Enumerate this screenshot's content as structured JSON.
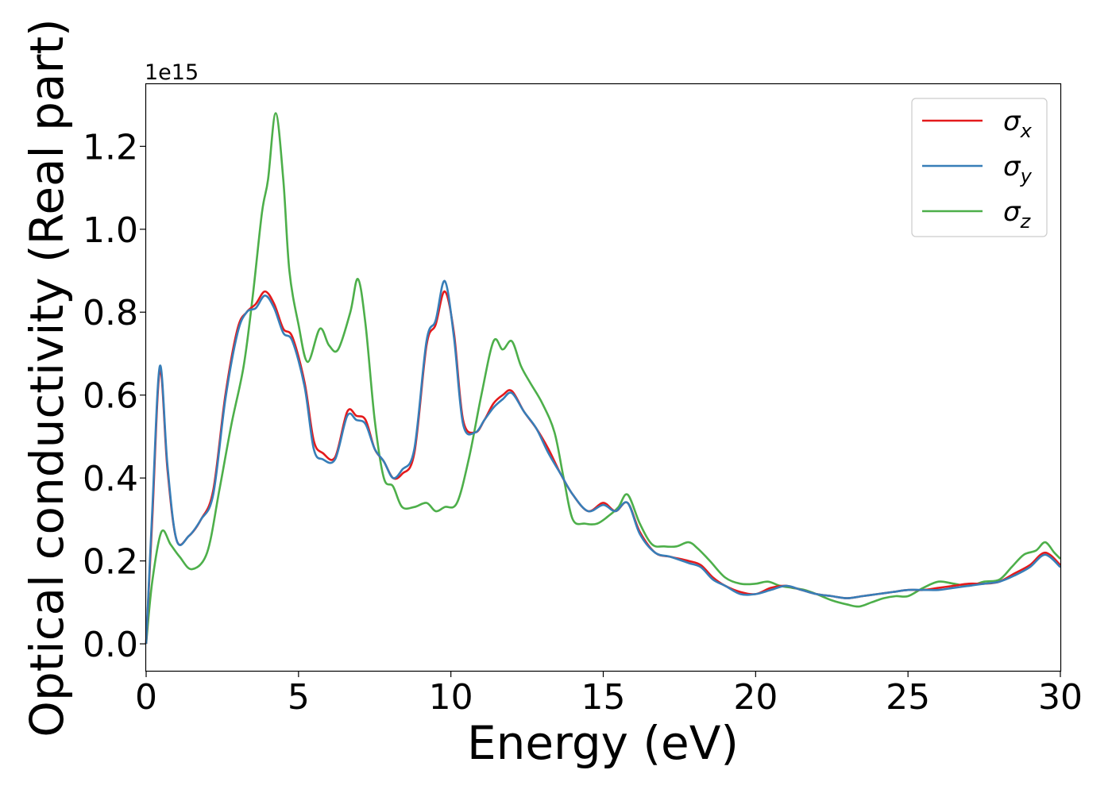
{
  "chart_data": {
    "type": "line",
    "title": "",
    "xlabel": "Energy (eV)",
    "ylabel": "Optical conductivity (Real part)",
    "offset_text": "1e15",
    "xlim": [
      0,
      30
    ],
    "ylim": [
      -0.065,
      1.35
    ],
    "x_ticks": [
      0,
      5,
      10,
      15,
      20,
      25,
      30
    ],
    "y_ticks": [
      0.0,
      0.2,
      0.4,
      0.6,
      0.8,
      1.0,
      1.2
    ],
    "y_tick_labels": [
      "0.0",
      "0.2",
      "0.4",
      "0.6",
      "0.8",
      "1.0",
      "1.2"
    ],
    "grid": false,
    "legend_position": "top-right",
    "series": [
      {
        "name": "σ_x",
        "label_main": "σ",
        "label_sub": "x",
        "color": "#e41a1c",
        "points": [
          [
            0,
            0
          ],
          [
            0.2,
            0.3
          ],
          [
            0.45,
            0.66
          ],
          [
            0.7,
            0.42
          ],
          [
            1.0,
            0.25
          ],
          [
            1.4,
            0.26
          ],
          [
            1.8,
            0.3
          ],
          [
            2.2,
            0.37
          ],
          [
            2.6,
            0.6
          ],
          [
            3.0,
            0.76
          ],
          [
            3.3,
            0.8
          ],
          [
            3.6,
            0.82
          ],
          [
            3.9,
            0.85
          ],
          [
            4.2,
            0.82
          ],
          [
            4.5,
            0.76
          ],
          [
            4.8,
            0.74
          ],
          [
            5.2,
            0.63
          ],
          [
            5.5,
            0.49
          ],
          [
            5.8,
            0.46
          ],
          [
            6.2,
            0.45
          ],
          [
            6.6,
            0.56
          ],
          [
            6.9,
            0.55
          ],
          [
            7.2,
            0.54
          ],
          [
            7.5,
            0.47
          ],
          [
            7.8,
            0.44
          ],
          [
            8.1,
            0.4
          ],
          [
            8.4,
            0.41
          ],
          [
            8.8,
            0.46
          ],
          [
            9.2,
            0.72
          ],
          [
            9.5,
            0.77
          ],
          [
            9.8,
            0.85
          ],
          [
            10.1,
            0.75
          ],
          [
            10.4,
            0.54
          ],
          [
            10.8,
            0.51
          ],
          [
            11.1,
            0.54
          ],
          [
            11.4,
            0.58
          ],
          [
            11.7,
            0.6
          ],
          [
            12.0,
            0.61
          ],
          [
            12.4,
            0.56
          ],
          [
            12.8,
            0.52
          ],
          [
            13.2,
            0.47
          ],
          [
            13.6,
            0.41
          ],
          [
            14.0,
            0.36
          ],
          [
            14.5,
            0.32
          ],
          [
            15.0,
            0.34
          ],
          [
            15.4,
            0.32
          ],
          [
            15.8,
            0.34
          ],
          [
            16.2,
            0.27
          ],
          [
            16.7,
            0.22
          ],
          [
            17.2,
            0.21
          ],
          [
            17.8,
            0.2
          ],
          [
            18.2,
            0.19
          ],
          [
            18.6,
            0.16
          ],
          [
            19.0,
            0.14
          ],
          [
            19.5,
            0.125
          ],
          [
            20.0,
            0.12
          ],
          [
            20.5,
            0.135
          ],
          [
            21.0,
            0.14
          ],
          [
            21.5,
            0.13
          ],
          [
            22.0,
            0.12
          ],
          [
            22.5,
            0.115
          ],
          [
            23.0,
            0.11
          ],
          [
            23.5,
            0.115
          ],
          [
            24.0,
            0.12
          ],
          [
            24.5,
            0.125
          ],
          [
            25.0,
            0.13
          ],
          [
            25.5,
            0.13
          ],
          [
            26.0,
            0.135
          ],
          [
            26.5,
            0.14
          ],
          [
            27.0,
            0.145
          ],
          [
            27.5,
            0.145
          ],
          [
            28.0,
            0.15
          ],
          [
            28.5,
            0.17
          ],
          [
            29.0,
            0.19
          ],
          [
            29.5,
            0.22
          ],
          [
            30.0,
            0.19
          ]
        ]
      },
      {
        "name": "σ_y",
        "label_main": "σ",
        "label_sub": "y",
        "color": "#377eb8",
        "points": [
          [
            0,
            0
          ],
          [
            0.2,
            0.32
          ],
          [
            0.45,
            0.67
          ],
          [
            0.7,
            0.43
          ],
          [
            1.0,
            0.25
          ],
          [
            1.4,
            0.26
          ],
          [
            1.8,
            0.3
          ],
          [
            2.2,
            0.36
          ],
          [
            2.6,
            0.59
          ],
          [
            3.0,
            0.75
          ],
          [
            3.3,
            0.8
          ],
          [
            3.6,
            0.81
          ],
          [
            3.9,
            0.84
          ],
          [
            4.2,
            0.81
          ],
          [
            4.5,
            0.75
          ],
          [
            4.8,
            0.73
          ],
          [
            5.2,
            0.62
          ],
          [
            5.5,
            0.47
          ],
          [
            5.8,
            0.445
          ],
          [
            6.2,
            0.445
          ],
          [
            6.6,
            0.55
          ],
          [
            6.9,
            0.54
          ],
          [
            7.2,
            0.53
          ],
          [
            7.5,
            0.47
          ],
          [
            7.8,
            0.44
          ],
          [
            8.1,
            0.4
          ],
          [
            8.4,
            0.42
          ],
          [
            8.8,
            0.47
          ],
          [
            9.2,
            0.73
          ],
          [
            9.5,
            0.78
          ],
          [
            9.8,
            0.875
          ],
          [
            10.1,
            0.74
          ],
          [
            10.4,
            0.53
          ],
          [
            10.8,
            0.51
          ],
          [
            11.1,
            0.54
          ],
          [
            11.4,
            0.57
          ],
          [
            11.7,
            0.59
          ],
          [
            12.0,
            0.605
          ],
          [
            12.4,
            0.56
          ],
          [
            12.8,
            0.52
          ],
          [
            13.2,
            0.46
          ],
          [
            13.6,
            0.41
          ],
          [
            14.0,
            0.36
          ],
          [
            14.5,
            0.32
          ],
          [
            15.0,
            0.335
          ],
          [
            15.4,
            0.32
          ],
          [
            15.8,
            0.34
          ],
          [
            16.2,
            0.265
          ],
          [
            16.7,
            0.22
          ],
          [
            17.2,
            0.21
          ],
          [
            17.8,
            0.195
          ],
          [
            18.2,
            0.185
          ],
          [
            18.6,
            0.155
          ],
          [
            19.0,
            0.14
          ],
          [
            19.5,
            0.12
          ],
          [
            20.0,
            0.12
          ],
          [
            20.5,
            0.13
          ],
          [
            21.0,
            0.14
          ],
          [
            21.5,
            0.13
          ],
          [
            22.0,
            0.12
          ],
          [
            22.5,
            0.115
          ],
          [
            23.0,
            0.11
          ],
          [
            23.5,
            0.115
          ],
          [
            24.0,
            0.12
          ],
          [
            24.5,
            0.125
          ],
          [
            25.0,
            0.13
          ],
          [
            25.5,
            0.13
          ],
          [
            26.0,
            0.13
          ],
          [
            26.5,
            0.135
          ],
          [
            27.0,
            0.14
          ],
          [
            27.5,
            0.145
          ],
          [
            28.0,
            0.15
          ],
          [
            28.5,
            0.165
          ],
          [
            29.0,
            0.185
          ],
          [
            29.5,
            0.215
          ],
          [
            30.0,
            0.185
          ]
        ]
      },
      {
        "name": "σ_z",
        "label_main": "σ",
        "label_sub": "z",
        "color": "#4daf4a",
        "points": [
          [
            0,
            0
          ],
          [
            0.2,
            0.15
          ],
          [
            0.5,
            0.27
          ],
          [
            0.8,
            0.24
          ],
          [
            1.1,
            0.21
          ],
          [
            1.5,
            0.18
          ],
          [
            2.0,
            0.22
          ],
          [
            2.4,
            0.37
          ],
          [
            2.8,
            0.53
          ],
          [
            3.2,
            0.67
          ],
          [
            3.5,
            0.84
          ],
          [
            3.8,
            1.04
          ],
          [
            4.0,
            1.12
          ],
          [
            4.25,
            1.28
          ],
          [
            4.5,
            1.12
          ],
          [
            4.7,
            0.9
          ],
          [
            5.0,
            0.77
          ],
          [
            5.3,
            0.68
          ],
          [
            5.7,
            0.76
          ],
          [
            6.0,
            0.72
          ],
          [
            6.3,
            0.71
          ],
          [
            6.7,
            0.8
          ],
          [
            6.95,
            0.88
          ],
          [
            7.2,
            0.77
          ],
          [
            7.5,
            0.54
          ],
          [
            7.8,
            0.4
          ],
          [
            8.1,
            0.38
          ],
          [
            8.4,
            0.33
          ],
          [
            8.8,
            0.33
          ],
          [
            9.2,
            0.34
          ],
          [
            9.5,
            0.32
          ],
          [
            9.8,
            0.33
          ],
          [
            10.2,
            0.34
          ],
          [
            10.6,
            0.45
          ],
          [
            11.0,
            0.6
          ],
          [
            11.4,
            0.73
          ],
          [
            11.7,
            0.71
          ],
          [
            12.0,
            0.73
          ],
          [
            12.3,
            0.67
          ],
          [
            12.6,
            0.63
          ],
          [
            13.0,
            0.58
          ],
          [
            13.4,
            0.51
          ],
          [
            13.7,
            0.4
          ],
          [
            14.0,
            0.3
          ],
          [
            14.4,
            0.29
          ],
          [
            14.8,
            0.29
          ],
          [
            15.2,
            0.31
          ],
          [
            15.5,
            0.33
          ],
          [
            15.8,
            0.36
          ],
          [
            16.2,
            0.29
          ],
          [
            16.6,
            0.24
          ],
          [
            17.0,
            0.235
          ],
          [
            17.4,
            0.235
          ],
          [
            17.8,
            0.245
          ],
          [
            18.1,
            0.23
          ],
          [
            18.5,
            0.2
          ],
          [
            19.0,
            0.16
          ],
          [
            19.5,
            0.145
          ],
          [
            20.0,
            0.145
          ],
          [
            20.4,
            0.15
          ],
          [
            20.8,
            0.14
          ],
          [
            21.2,
            0.135
          ],
          [
            21.6,
            0.13
          ],
          [
            22.0,
            0.12
          ],
          [
            22.5,
            0.105
          ],
          [
            23.0,
            0.095
          ],
          [
            23.4,
            0.09
          ],
          [
            23.8,
            0.1
          ],
          [
            24.2,
            0.11
          ],
          [
            24.6,
            0.115
          ],
          [
            25.0,
            0.115
          ],
          [
            25.5,
            0.135
          ],
          [
            26.0,
            0.15
          ],
          [
            26.5,
            0.145
          ],
          [
            27.0,
            0.14
          ],
          [
            27.5,
            0.15
          ],
          [
            28.0,
            0.155
          ],
          [
            28.4,
            0.185
          ],
          [
            28.8,
            0.215
          ],
          [
            29.2,
            0.225
          ],
          [
            29.5,
            0.245
          ],
          [
            29.8,
            0.22
          ],
          [
            30.0,
            0.205
          ]
        ]
      }
    ]
  }
}
